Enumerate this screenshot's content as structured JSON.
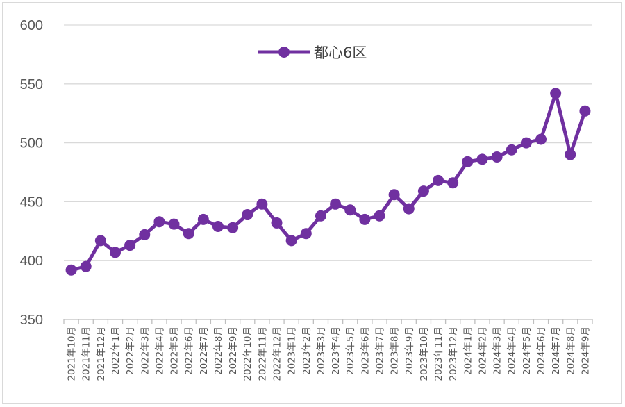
{
  "chart_data": {
    "type": "line",
    "title": "",
    "xlabel": "",
    "ylabel": "",
    "ylim": [
      350,
      600
    ],
    "yticks": [
      350,
      400,
      450,
      500,
      550,
      600
    ],
    "grid": true,
    "legend_position": "top-center",
    "categories": [
      "2021年10月",
      "2021年11月",
      "2021年12月",
      "2022年1月",
      "2022年2月",
      "2022年3月",
      "2022年4月",
      "2022年5月",
      "2022年6月",
      "2022年7月",
      "2022年8月",
      "2022年9月",
      "2022年10月",
      "2022年11月",
      "2022年12月",
      "2023年1月",
      "2023年2月",
      "2023年3月",
      "2023年4月",
      "2023年5月",
      "2023年6月",
      "2023年7月",
      "2023年8月",
      "2023年9月",
      "2023年10月",
      "2023年11月",
      "2023年12月",
      "2024年1月",
      "2024年2月",
      "2024年3月",
      "2024年4月",
      "2024年5月",
      "2024年6月",
      "2024年7月",
      "2024年8月",
      "2024年9月"
    ],
    "series": [
      {
        "name": "都心6区",
        "color": "#7030a0",
        "values": [
          392,
          395,
          417,
          407,
          413,
          422,
          433,
          431,
          423,
          435,
          429,
          428,
          439,
          448,
          432,
          417,
          423,
          438,
          448,
          443,
          435,
          438,
          456,
          444,
          459,
          468,
          466,
          484,
          486,
          488,
          494,
          500,
          503,
          542,
          490,
          527
        ]
      }
    ]
  }
}
